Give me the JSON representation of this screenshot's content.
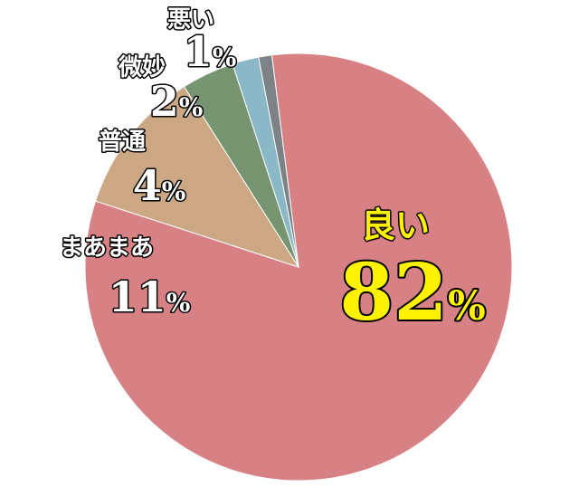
{
  "chart_data": {
    "type": "pie",
    "title": "",
    "slices": [
      {
        "label": "良い",
        "value": 82,
        "value_text": "82",
        "unit": "%",
        "color": "#d78185",
        "text_color": "#fff200"
      },
      {
        "label": "まあまあ",
        "value": 11,
        "value_text": "11",
        "unit": "%",
        "color": "#cba784",
        "text_color": "#ffffff"
      },
      {
        "label": "普通",
        "value": 4,
        "value_text": "4",
        "unit": "%",
        "color": "#76946f",
        "text_color": "#ffffff"
      },
      {
        "label": "微妙",
        "value": 2,
        "value_text": "2",
        "unit": "%",
        "color": "#8ab8c6",
        "text_color": "#ffffff"
      },
      {
        "label": "悪い",
        "value": 1,
        "value_text": "1",
        "unit": "%",
        "color": "#7d8286",
        "text_color": "#ffffff"
      }
    ],
    "legend": "none"
  }
}
